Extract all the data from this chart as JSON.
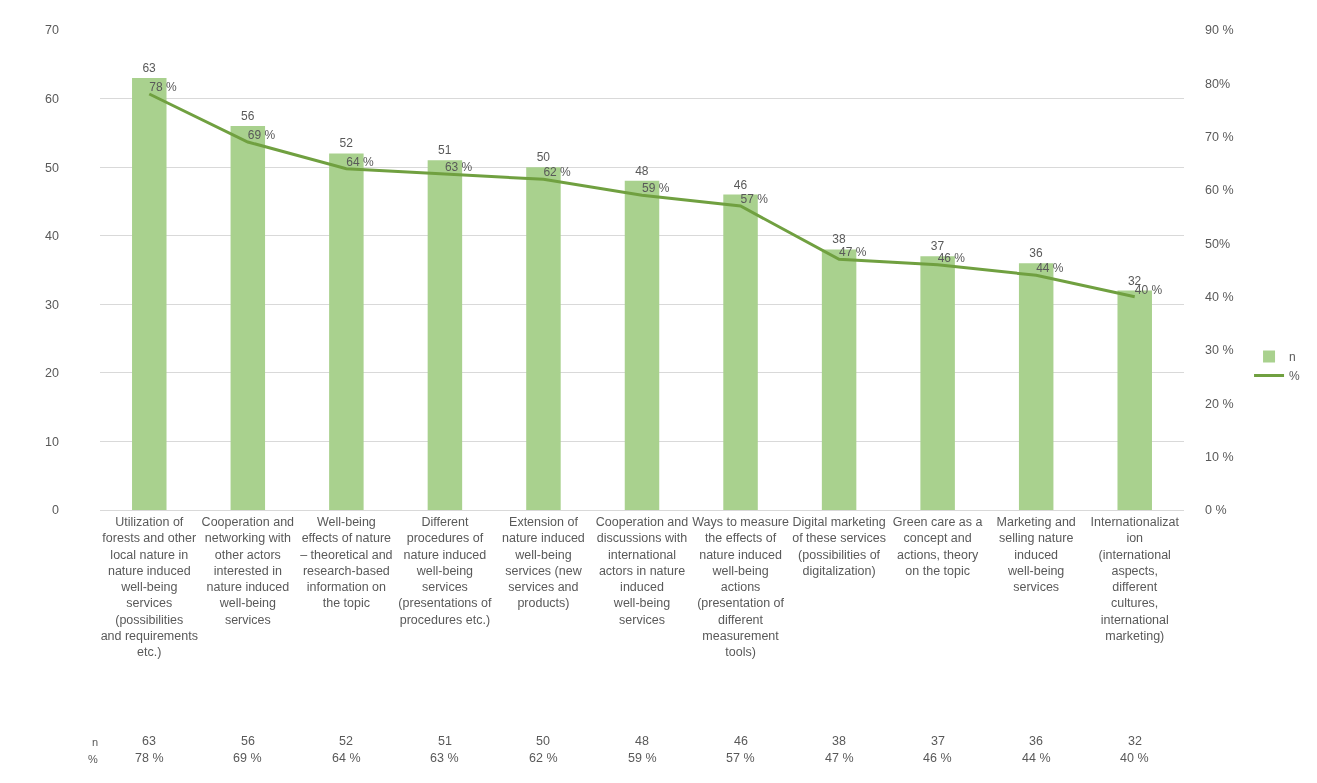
{
  "chart_data": {
    "type": "bar",
    "categories": [
      "Utilization of forests and other local nature in nature induced well-being services (possibilities and requirements etc.)",
      "Cooperation and networking with other actors interested in nature induced well-being services",
      "Well-being effects of nature – theoretical and research-based information on the topic",
      "Different procedures of nature induced well-being services (presentations of procedures etc.)",
      "Extension of nature induced well-being services (new services and products)",
      "Cooperation and discussions with international actors in nature induced well-being services",
      "Ways to measure the effects of nature induced well-being actions (presentation of different measurement tools)",
      "Digital marketing of these services (possibilities of digitalization)",
      "Green care as a concept and actions, theory on the topic",
      "Marketing and selling nature induced well-being services",
      "Internationalization (international aspects, different cultures, international marketing)"
    ],
    "series": [
      {
        "name": "n",
        "color": "#a9d18e",
        "values": [
          63,
          56,
          52,
          51,
          50,
          48,
          46,
          38,
          37,
          36,
          32
        ],
        "value_labels": [
          "63",
          "56",
          "52",
          "51",
          "50",
          "48",
          "46",
          "38",
          "37",
          "36",
          "32"
        ]
      },
      {
        "name": "%",
        "type": "line",
        "axis": "y2",
        "color": "#70a040",
        "values": [
          78,
          69,
          64,
          63,
          62,
          59,
          57,
          47,
          46,
          44,
          40
        ],
        "value_labels": [
          "78 %",
          "69 %",
          "64 %",
          "63 %",
          "62 %",
          "59 %",
          "57 %",
          "47 %",
          "46 %",
          "44 %",
          "40 %"
        ]
      }
    ],
    "ylim": [
      0,
      70
    ],
    "yticks": [
      0,
      10,
      20,
      30,
      40,
      50,
      60,
      70
    ],
    "y2lim": [
      0,
      90
    ],
    "y2ticks": [
      {
        "value": 0,
        "label": "0 %"
      },
      {
        "value": 10,
        "label": "10 %"
      },
      {
        "value": 20,
        "label": "20 %"
      },
      {
        "value": 30,
        "label": "30 %"
      },
      {
        "value": 40,
        "label": "40 %"
      },
      {
        "value": 50,
        "label": "50%"
      },
      {
        "value": 60,
        "label": "60 %"
      },
      {
        "value": 70,
        "label": "70 %"
      },
      {
        "value": 80,
        "label": "80%"
      },
      {
        "value": 90,
        "label": "90 %"
      }
    ],
    "grid": "y",
    "legend": "right",
    "marker": "none",
    "line_style": "solid"
  }
}
